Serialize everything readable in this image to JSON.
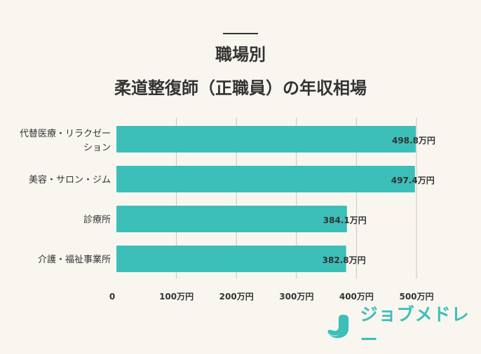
{
  "header": {
    "title_line1": "職場別",
    "title_line2": "柔道整復師（正職員）の年収相場"
  },
  "chart_data": {
    "type": "bar",
    "orientation": "horizontal",
    "categories": [
      "代替医療・リラクゼーション",
      "美容・サロン・ジム",
      "診療所",
      "介護・福祉事業所"
    ],
    "category_lines": [
      [
        "代替医療・リラクゼー",
        "ション"
      ],
      [
        "美容・サロン・ジム"
      ],
      [
        "診療所"
      ],
      [
        "介護・福祉事業所"
      ]
    ],
    "values": [
      498.8,
      497.4,
      384.1,
      382.8
    ],
    "data_labels": [
      "498.8万円",
      "497.4万円",
      "384.1万円",
      "382.8万円"
    ],
    "x_ticks": [
      0,
      100,
      200,
      300,
      400,
      500
    ],
    "x_tick_labels": [
      "0",
      "100万円",
      "200万円",
      "300万円",
      "400万円",
      "500万円"
    ],
    "xlim": [
      0,
      500
    ],
    "grid": true,
    "bar_color": "#3cbfb8"
  },
  "brand": {
    "name": "ジョブメドレー",
    "color": "#3cbfb8",
    "icon": "jobmedley-logo-icon"
  }
}
